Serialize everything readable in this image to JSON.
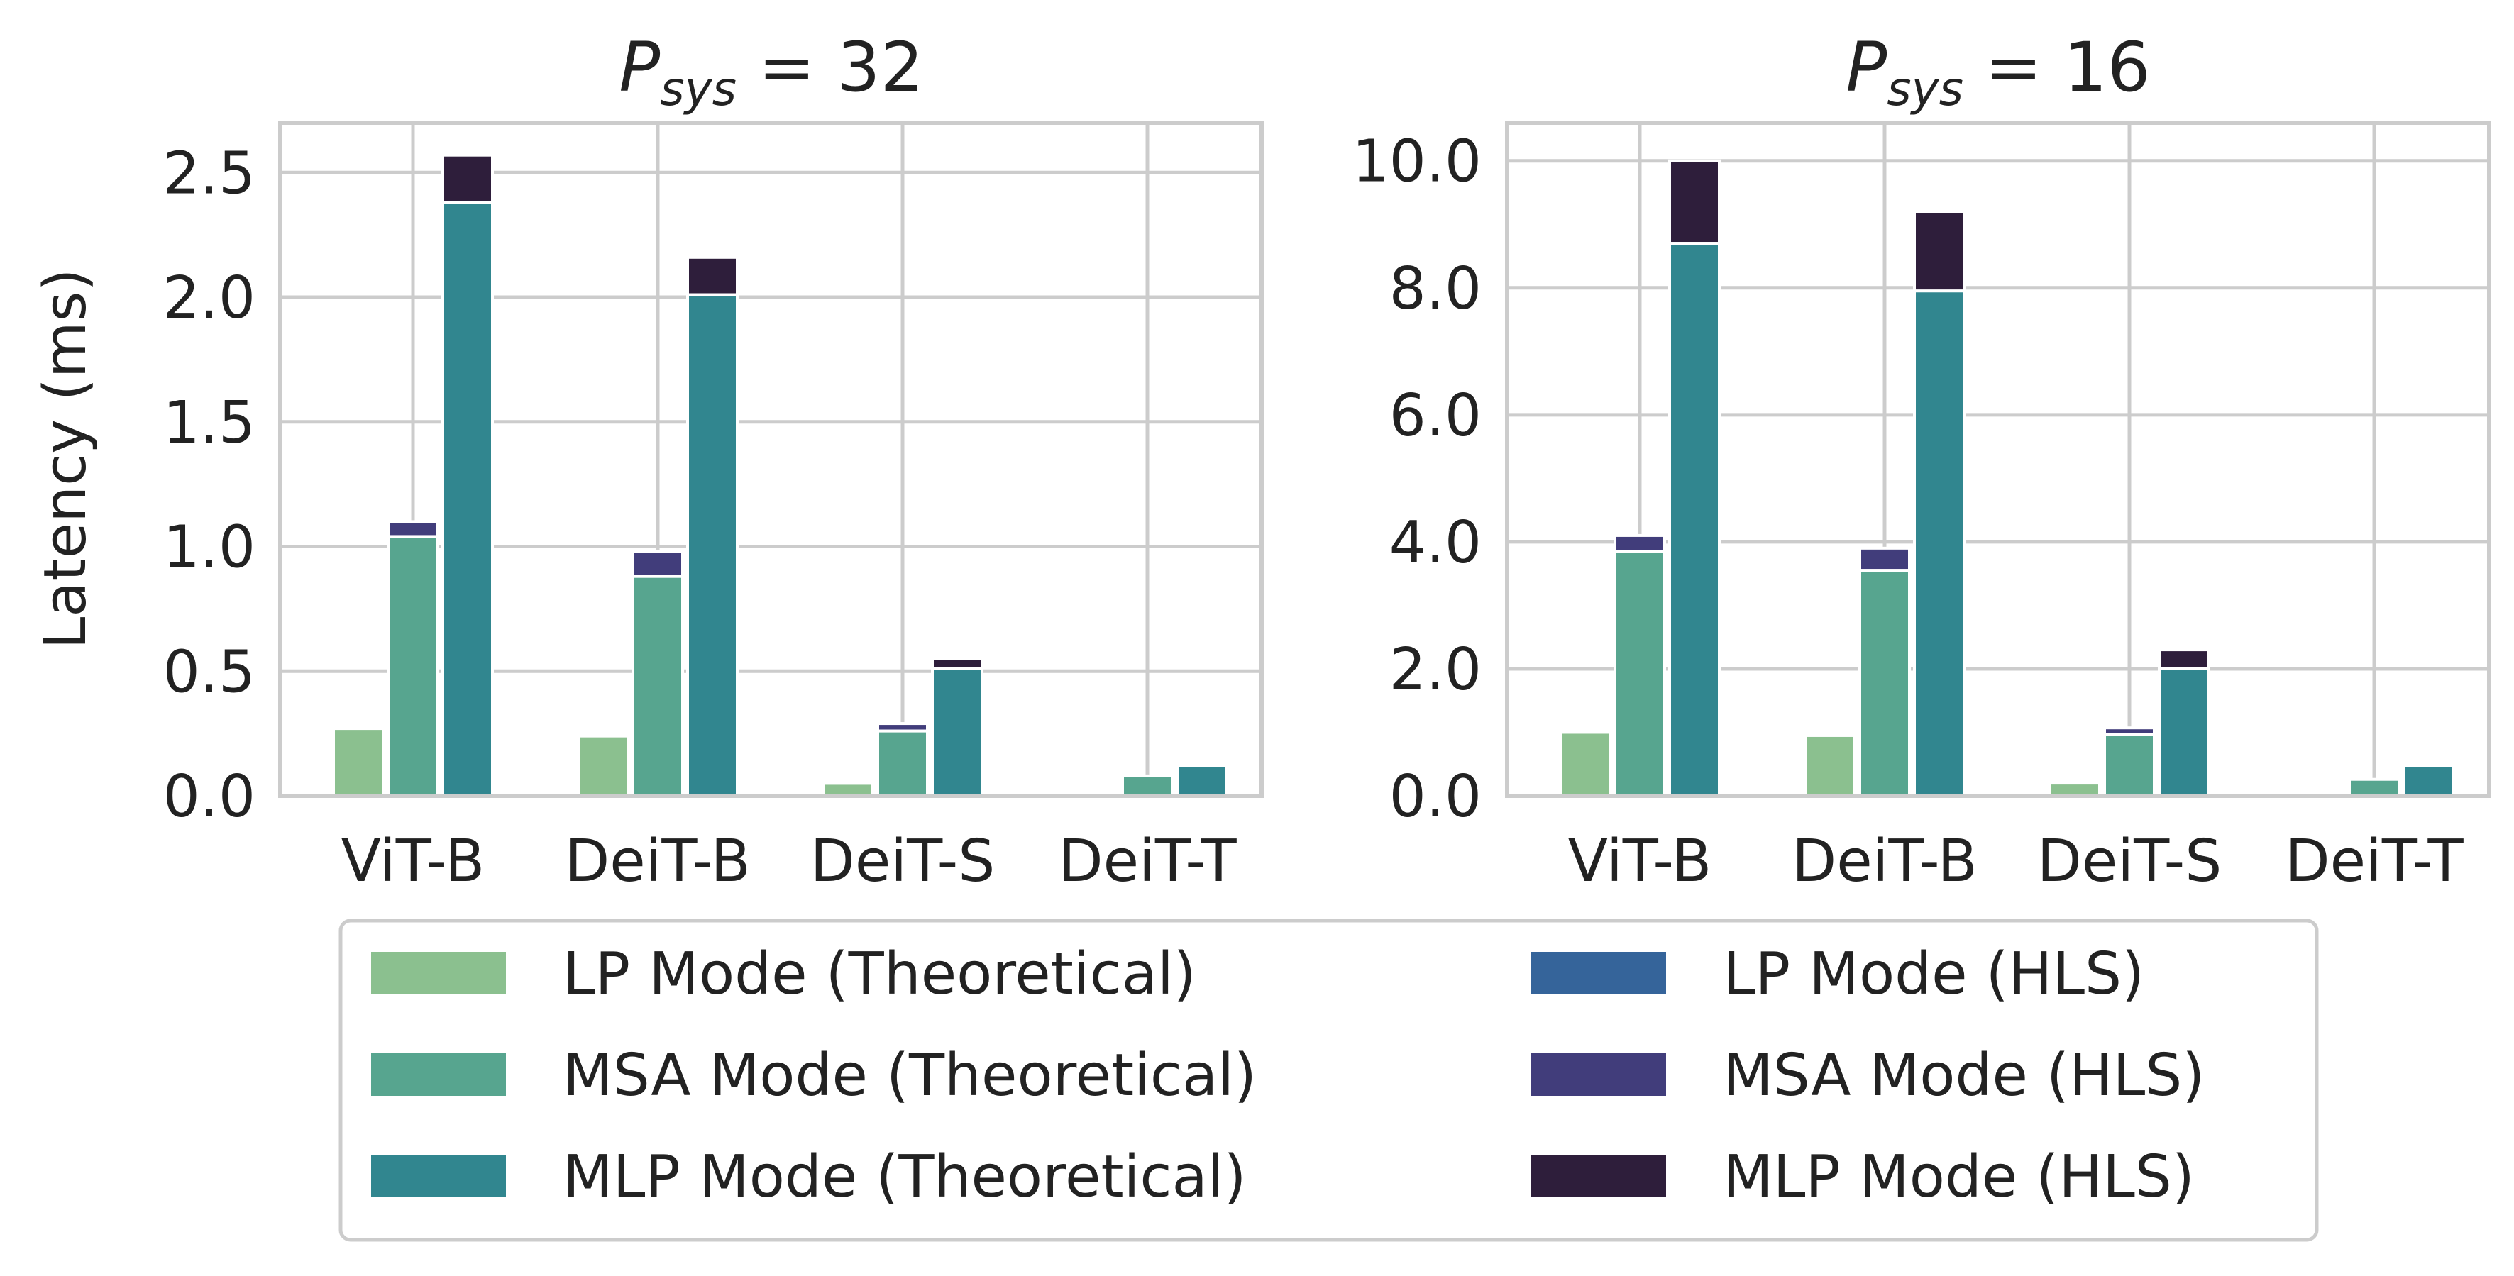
{
  "chart_data": [
    {
      "type": "bar",
      "title_symbol": "P",
      "title_subscript": "sys",
      "title_rest": " = 32",
      "ylabel": "Latency (ms)",
      "ylim": [
        0,
        2.7
      ],
      "yticks": [
        0.0,
        0.5,
        1.0,
        1.5,
        2.0,
        2.5
      ],
      "ytick_labels": [
        "0.0",
        "0.5",
        "1.0",
        "1.5",
        "2.0",
        "2.5"
      ],
      "categories": [
        "ViT-B",
        "DeiT-B",
        "DeiT-S",
        "DeiT-T"
      ],
      "grid": true,
      "series": [
        {
          "mode": "LP Mode",
          "theoretical": [
            0.27,
            0.24,
            0.05,
            0.0
          ],
          "hls": [
            0.27,
            0.24,
            0.05,
            0.0
          ]
        },
        {
          "mode": "MSA Mode",
          "theoretical": [
            1.04,
            0.88,
            0.26,
            0.08
          ],
          "hls": [
            1.1,
            0.98,
            0.29,
            0.08
          ]
        },
        {
          "mode": "MLP Mode",
          "theoretical": [
            2.38,
            2.01,
            0.51,
            0.12
          ],
          "hls": [
            2.57,
            2.16,
            0.55,
            0.12
          ]
        }
      ]
    },
    {
      "type": "bar",
      "title_symbol": "P",
      "title_subscript": "sys",
      "title_rest": " = 16",
      "ylabel": "",
      "ylim": [
        0,
        10.6
      ],
      "yticks": [
        0.0,
        2.0,
        4.0,
        6.0,
        8.0,
        10.0
      ],
      "ytick_labels": [
        "0.0",
        "2.0",
        "4.0",
        "6.0",
        "8.0",
        "10.0"
      ],
      "categories": [
        "ViT-B",
        "DeiT-B",
        "DeiT-S",
        "DeiT-T"
      ],
      "grid": true,
      "series": [
        {
          "mode": "LP Mode",
          "theoretical": [
            1.0,
            0.95,
            0.2,
            0.0
          ],
          "hls": [
            1.0,
            0.95,
            0.2,
            0.0
          ]
        },
        {
          "mode": "MSA Mode",
          "theoretical": [
            3.85,
            3.55,
            0.97,
            0.26
          ],
          "hls": [
            4.1,
            3.9,
            1.07,
            0.26
          ]
        },
        {
          "mode": "MLP Mode",
          "theoretical": [
            8.7,
            7.95,
            2.0,
            0.48
          ],
          "hls": [
            10.0,
            9.2,
            2.3,
            0.48
          ]
        }
      ]
    }
  ],
  "legend": {
    "placement": "bottom-center",
    "columns": 2,
    "items": [
      {
        "label": "LP Mode (Theoretical)",
        "color": "#8bc08f"
      },
      {
        "label": "LP Mode (HLS)",
        "color": "#35649a"
      },
      {
        "label": "MSA Mode (Theoretical)",
        "color": "#57a58f"
      },
      {
        "label": "MSA Mode (HLS)",
        "color": "#413d7b"
      },
      {
        "label": "MLP Mode (Theoretical)",
        "color": "#31868f"
      },
      {
        "label": "MLP Mode (HLS)",
        "color": "#2e1e3b"
      }
    ]
  },
  "colors": {
    "theoretical": [
      "#8bc08f",
      "#57a58f",
      "#31868f"
    ],
    "hls": [
      "#35649a",
      "#413d7b",
      "#2e1e3b"
    ],
    "grid": "#cccccc",
    "text": "#222222"
  }
}
